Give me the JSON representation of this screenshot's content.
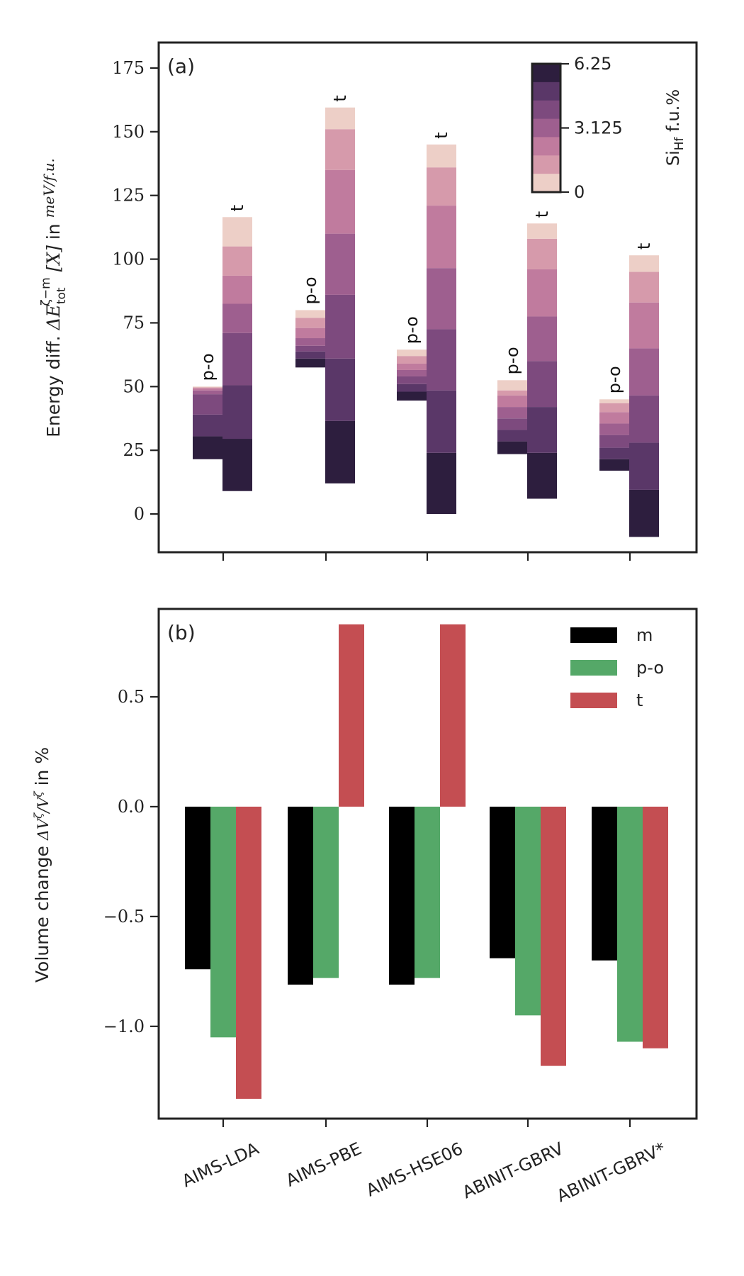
{
  "chart_data": [
    {
      "panel": "(a)",
      "type": "bar",
      "subtype": "stacked-floating",
      "ylabel": "Energy diff. ΔE_tot^{ζ−m}[X] in meV/f.u.",
      "ylim": [
        -15,
        185
      ],
      "yticks": [
        0,
        25,
        50,
        75,
        100,
        125,
        150,
        175
      ],
      "categories": [
        "AIMS-LDA",
        "AIMS-PBE",
        "AIMS-HSE06",
        "ABINIT-GBRV",
        "ABINIT-GBRV*"
      ],
      "bar_labels": [
        "p-o",
        "t"
      ],
      "colorbar": {
        "label": "Si_Hf f.u.%",
        "ticks": [
          "6.25",
          "3.125",
          "0"
        ],
        "colors": [
          "#2d1e3e",
          "#5a3768",
          "#7d4a7e",
          "#9e5f8f",
          "#c07b9e",
          "#d69aab",
          "#edcfc7"
        ]
      },
      "series": [
        {
          "name": "p-o",
          "segment_edges": [
            [
              21.5,
              30.5,
              39,
              47,
              48.5,
              49.3,
              49.7,
              50
            ],
            [
              57.5,
              61,
              63.8,
              66,
              69,
              73,
              77,
              80
            ],
            [
              44.5,
              48,
              51,
              54,
              56.5,
              59,
              62,
              64.5
            ],
            [
              23.5,
              28.5,
              33,
              37.5,
              42,
              46.5,
              48.5,
              52.5
            ],
            [
              17,
              21.5,
              26,
              31,
              35.5,
              40,
              43.5,
              45
            ]
          ]
        },
        {
          "name": "t",
          "segment_edges": [
            [
              9,
              29.5,
              50.5,
              71,
              82.5,
              93.5,
              105,
              116.5
            ],
            [
              12,
              36.5,
              61,
              86,
              110,
              135,
              151,
              159.5
            ],
            [
              0,
              24,
              48.5,
              72.5,
              96.5,
              121,
              136,
              145
            ],
            [
              6,
              24,
              42,
              60,
              77.5,
              96,
              108,
              114
            ],
            [
              -9,
              9.5,
              28,
              46.5,
              65,
              83,
              95,
              101.5
            ]
          ]
        }
      ]
    },
    {
      "panel": "(b)",
      "type": "bar",
      "ylabel": "Volume change ΔV^ζ/V^ζ in %",
      "ylim": [
        -1.42,
        0.9
      ],
      "yticks": [
        "0.5",
        "0.0",
        "−0.5",
        "−1.0"
      ],
      "ytick_values": [
        0.5,
        0.0,
        -0.5,
        -1.0
      ],
      "categories": [
        "AIMS-LDA",
        "AIMS-PBE",
        "AIMS-HSE06",
        "ABINIT-GBRV",
        "ABINIT-GBRV*"
      ],
      "legend_position": "top-right",
      "series": [
        {
          "name": "m",
          "color": "#000000",
          "values": [
            -0.74,
            -0.81,
            -0.81,
            -0.69,
            -0.7
          ]
        },
        {
          "name": "p-o",
          "color": "#55a868",
          "values": [
            -1.05,
            -0.78,
            -0.78,
            -0.95,
            -1.07
          ]
        },
        {
          "name": "t",
          "color": "#c44e52",
          "values": [
            -1.33,
            0.83,
            0.83,
            -1.18,
            -1.1
          ]
        }
      ]
    }
  ]
}
